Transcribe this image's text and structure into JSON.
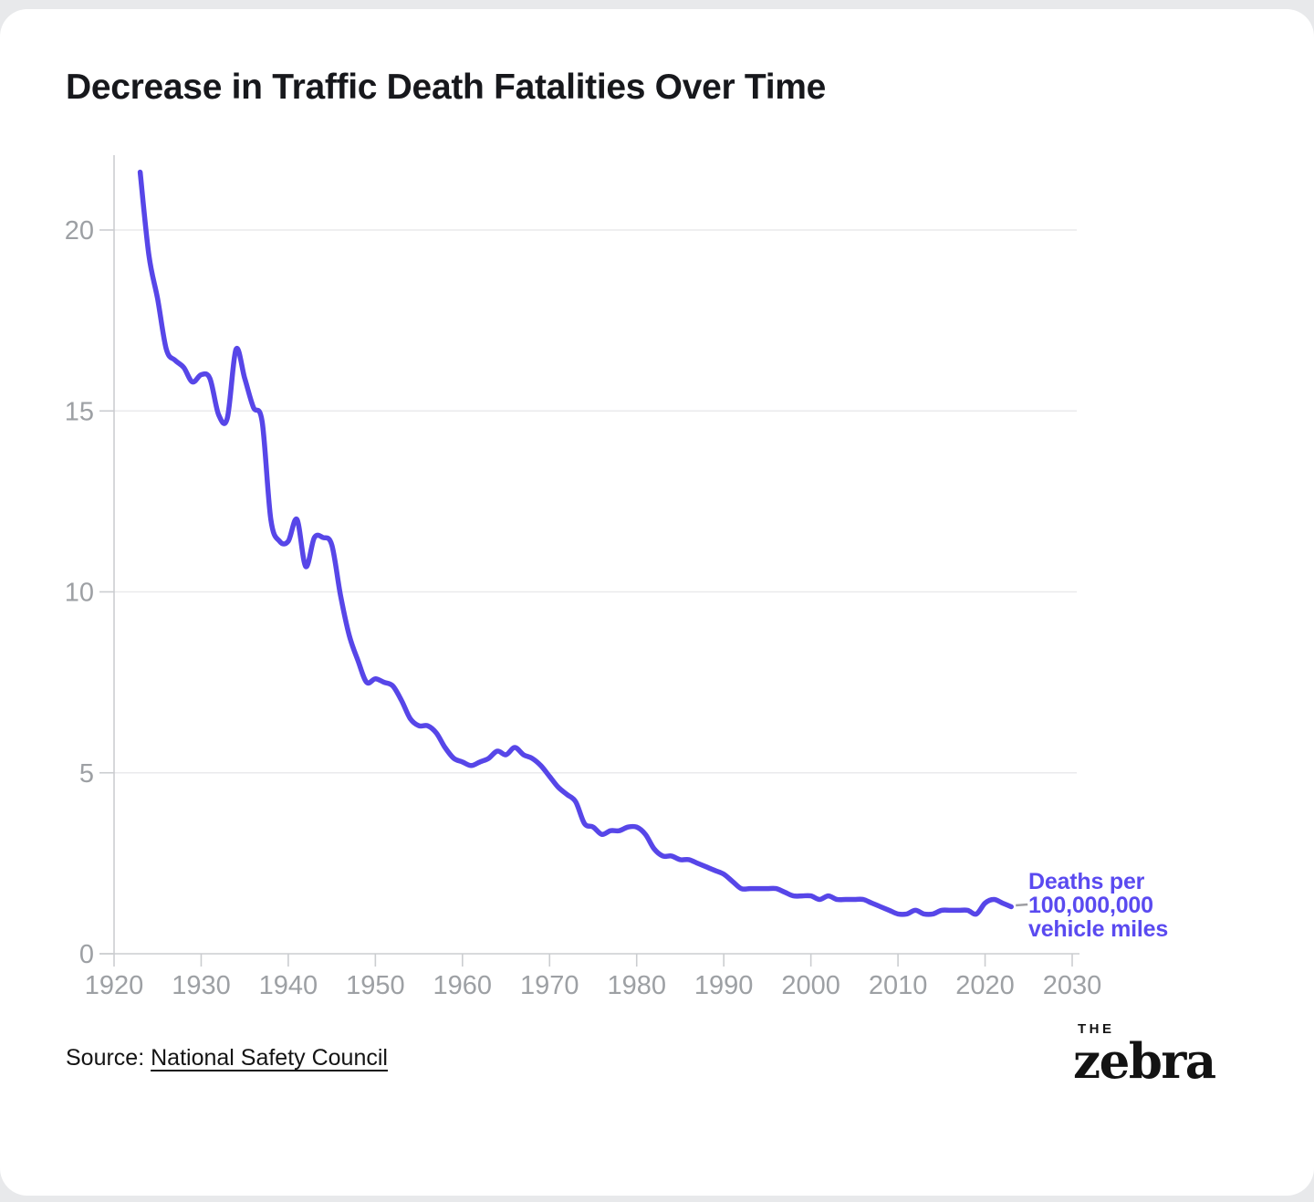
{
  "chart_data": {
    "type": "line",
    "title": "Decrease in Traffic Death Fatalities Over Time",
    "xlabel": "",
    "ylabel": "Deaths per 100,000,000 vehicle miles",
    "xlim": [
      1920,
      2030
    ],
    "ylim": [
      0,
      22
    ],
    "x_ticks": [
      1920,
      1930,
      1940,
      1950,
      1960,
      1970,
      1980,
      1990,
      2000,
      2010,
      2020,
      2030
    ],
    "y_ticks": [
      0,
      5,
      10,
      15,
      20
    ],
    "grid": "horizontal",
    "legend_position": "none",
    "line_color": "#5746e8",
    "annotation": {
      "lines": [
        "Deaths per",
        "100,000,000",
        "vehicle miles"
      ],
      "color": "#5a4af0",
      "connector_color": "#9e9ea3"
    },
    "series": [
      {
        "name": "Deaths per 100,000,000 vehicle miles",
        "x": [
          1923,
          1924,
          1925,
          1926,
          1927,
          1928,
          1929,
          1930,
          1931,
          1932,
          1933,
          1934,
          1935,
          1936,
          1937,
          1938,
          1939,
          1940,
          1941,
          1942,
          1943,
          1944,
          1945,
          1946,
          1947,
          1948,
          1949,
          1950,
          1951,
          1952,
          1953,
          1954,
          1955,
          1956,
          1957,
          1958,
          1959,
          1960,
          1961,
          1962,
          1963,
          1964,
          1965,
          1966,
          1967,
          1968,
          1969,
          1970,
          1971,
          1972,
          1973,
          1974,
          1975,
          1976,
          1977,
          1978,
          1979,
          1980,
          1981,
          1982,
          1983,
          1984,
          1985,
          1986,
          1987,
          1988,
          1989,
          1990,
          1991,
          1992,
          1993,
          1994,
          1995,
          1996,
          1997,
          1998,
          1999,
          2000,
          2001,
          2002,
          2003,
          2004,
          2005,
          2006,
          2007,
          2008,
          2009,
          2010,
          2011,
          2012,
          2013,
          2014,
          2015,
          2016,
          2017,
          2018,
          2019,
          2020,
          2021,
          2022,
          2023
        ],
        "values": [
          21.6,
          19.3,
          18.1,
          16.7,
          16.4,
          16.2,
          15.8,
          16.0,
          15.9,
          14.9,
          14.8,
          16.7,
          15.9,
          15.1,
          14.7,
          12.0,
          11.4,
          11.4,
          12.0,
          10.7,
          11.5,
          11.5,
          11.3,
          9.9,
          8.8,
          8.1,
          7.5,
          7.6,
          7.5,
          7.4,
          7.0,
          6.5,
          6.3,
          6.3,
          6.1,
          5.7,
          5.4,
          5.3,
          5.2,
          5.3,
          5.4,
          5.6,
          5.5,
          5.7,
          5.5,
          5.4,
          5.2,
          4.9,
          4.6,
          4.4,
          4.2,
          3.6,
          3.5,
          3.3,
          3.4,
          3.4,
          3.5,
          3.5,
          3.3,
          2.9,
          2.7,
          2.7,
          2.6,
          2.6,
          2.5,
          2.4,
          2.3,
          2.2,
          2.0,
          1.8,
          1.8,
          1.8,
          1.8,
          1.8,
          1.7,
          1.6,
          1.6,
          1.6,
          1.5,
          1.6,
          1.5,
          1.5,
          1.5,
          1.5,
          1.4,
          1.3,
          1.2,
          1.1,
          1.1,
          1.2,
          1.1,
          1.1,
          1.2,
          1.2,
          1.2,
          1.2,
          1.1,
          1.4,
          1.5,
          1.4,
          1.3
        ]
      }
    ],
    "axis_colors": {
      "tick_labels": "#9da0a4",
      "axis_lines": "#cbcdd0",
      "grid_lines": "#eaeaec"
    }
  },
  "footer": {
    "source_prefix": "Source: ",
    "source_link": "National Safety Council",
    "logo": {
      "top": "THE",
      "main": "zebra"
    }
  }
}
